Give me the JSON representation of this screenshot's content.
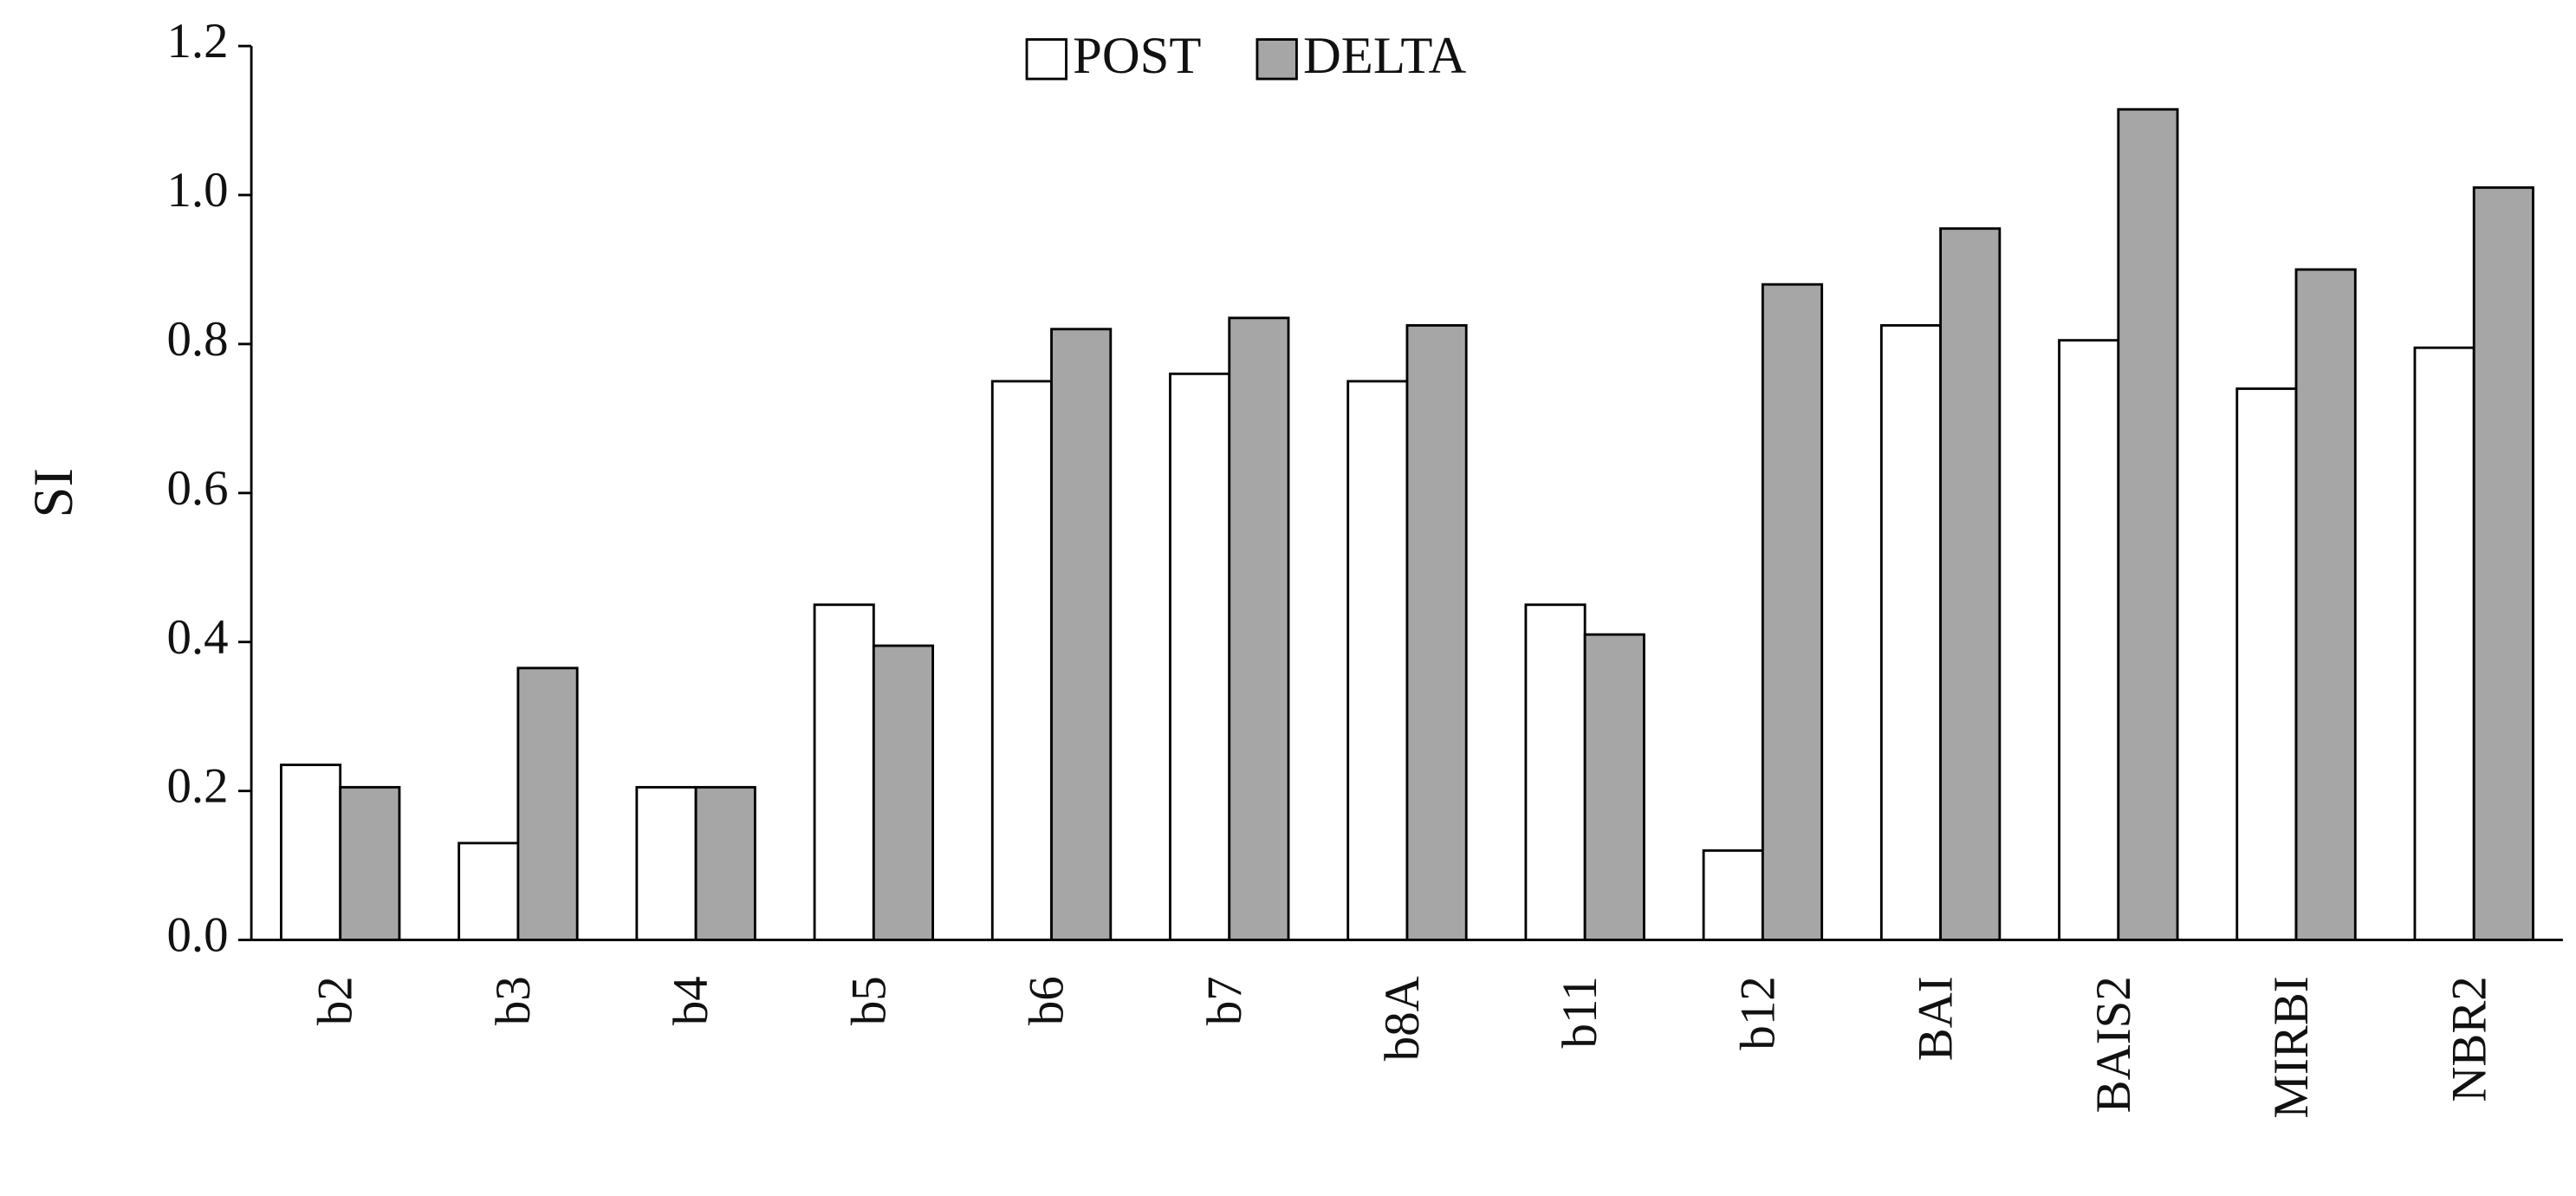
{
  "chart_data": {
    "type": "bar",
    "y_label": "SI",
    "categories": [
      "b2",
      "b3",
      "b4",
      "b5",
      "b6",
      "b7",
      "b8A",
      "b11",
      "b12",
      "BAI",
      "BAIS2",
      "MIRBI",
      "NBR2"
    ],
    "series": [
      {
        "name": "POST",
        "color": "#ffffff",
        "values": [
          0.235,
          0.13,
          0.205,
          0.45,
          0.75,
          0.76,
          0.75,
          0.45,
          0.12,
          0.825,
          0.805,
          0.74,
          0.795
        ]
      },
      {
        "name": "DELTA",
        "color": "#a6a6a6",
        "values": [
          0.205,
          0.365,
          0.205,
          0.395,
          0.82,
          0.835,
          0.825,
          0.41,
          0.88,
          0.955,
          1.115,
          0.9,
          1.01
        ]
      }
    ],
    "ylim": [
      0,
      1.2
    ],
    "yticks": [
      {
        "value": 0,
        "label": "0.0"
      },
      {
        "value": 0.2,
        "label": "0.2"
      },
      {
        "value": 0.4,
        "label": "0.4"
      },
      {
        "value": 0.6,
        "label": "0.6"
      },
      {
        "value": 0.8,
        "label": "0.8"
      },
      {
        "value": 1,
        "label": "1.0"
      },
      {
        "value": 1.2,
        "label": "1.2"
      }
    ],
    "grid": false,
    "legend": "top"
  }
}
